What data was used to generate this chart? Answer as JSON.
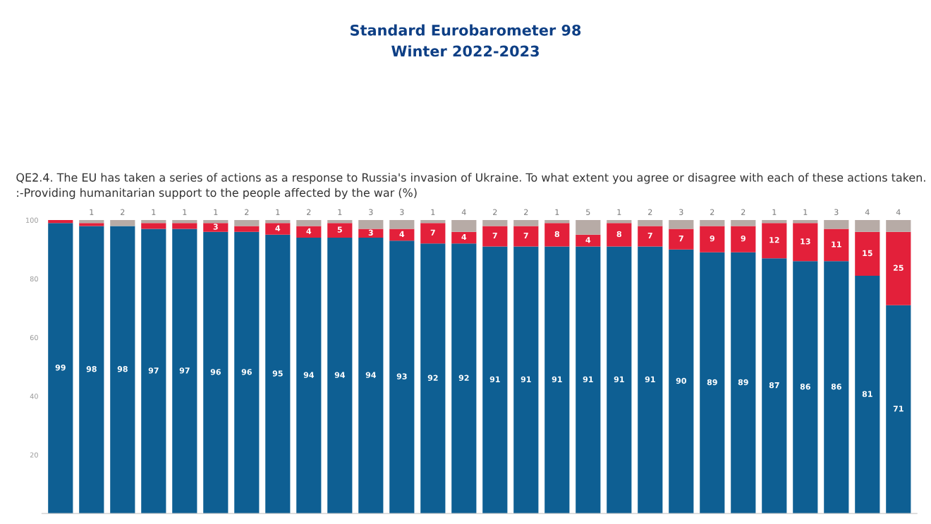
{
  "chart_data": {
    "type": "bar",
    "stacked": true,
    "title": "Standard Eurobarometer 98\nWinter 2022-2023",
    "subtitle": "QE2.4. The EU has taken a series of actions as a response to Russia's invasion of Ukraine. To what extent you agree or disagree with each of these actions taken.\n:-Providing humanitarian support to the people affected by the war (%)",
    "categories": [
      null,
      null,
      null,
      null,
      null,
      null,
      null,
      null,
      null,
      null,
      null,
      null,
      null,
      null,
      null,
      null,
      null,
      null,
      null,
      null,
      null,
      null,
      null,
      null,
      null,
      null,
      null,
      null
    ],
    "series": [
      {
        "color": "#0e5f93",
        "values": [
          99,
          98,
          98,
          97,
          97,
          96,
          96,
          95,
          94,
          94,
          94,
          93,
          92,
          92,
          91,
          91,
          91,
          91,
          91,
          91,
          90,
          89,
          89,
          87,
          86,
          86,
          81,
          71
        ],
        "value_labels": [
          "99",
          "98",
          "98",
          "97",
          "97",
          "96",
          "96",
          "95",
          "94",
          "94",
          "94",
          "93",
          "92",
          "92",
          "91",
          "91",
          "91",
          "91",
          "91",
          "91",
          "90",
          "89",
          "89",
          "87",
          "86",
          "86",
          "81",
          "71"
        ]
      },
      {
        "color": "#e3203a",
        "values": [
          1,
          1,
          0,
          2,
          2,
          3,
          2,
          4,
          4,
          5,
          3,
          4,
          7,
          4,
          7,
          7,
          8,
          4,
          8,
          7,
          7,
          9,
          9,
          12,
          13,
          11,
          15,
          25
        ],
        "value_labels": [
          null,
          null,
          null,
          null,
          null,
          "3",
          null,
          "4",
          "4",
          "5",
          "3",
          "4",
          "7",
          "4",
          "7",
          "7",
          "8",
          "4",
          "8",
          "7",
          "7",
          "9",
          "9",
          "12",
          "13",
          "11",
          "15",
          "25"
        ]
      },
      {
        "color": "#b7aba6",
        "values": [
          0,
          1,
          2,
          1,
          1,
          1,
          2,
          1,
          2,
          1,
          3,
          3,
          1,
          4,
          2,
          2,
          1,
          5,
          1,
          2,
          3,
          2,
          2,
          1,
          1,
          3,
          4,
          4
        ],
        "value_labels": [
          null,
          "1",
          "2",
          "1",
          "1",
          "1",
          "2",
          "1",
          "2",
          "1",
          "3",
          "3",
          "1",
          "4",
          "2",
          "2",
          "1",
          "5",
          "1",
          "2",
          "3",
          "2",
          "2",
          "1",
          "1",
          "3",
          "4",
          "4"
        ]
      }
    ],
    "ylim": [
      0,
      100
    ],
    "yticks": [
      20,
      40,
      60,
      80,
      100
    ],
    "grid": false,
    "legend": false
  }
}
